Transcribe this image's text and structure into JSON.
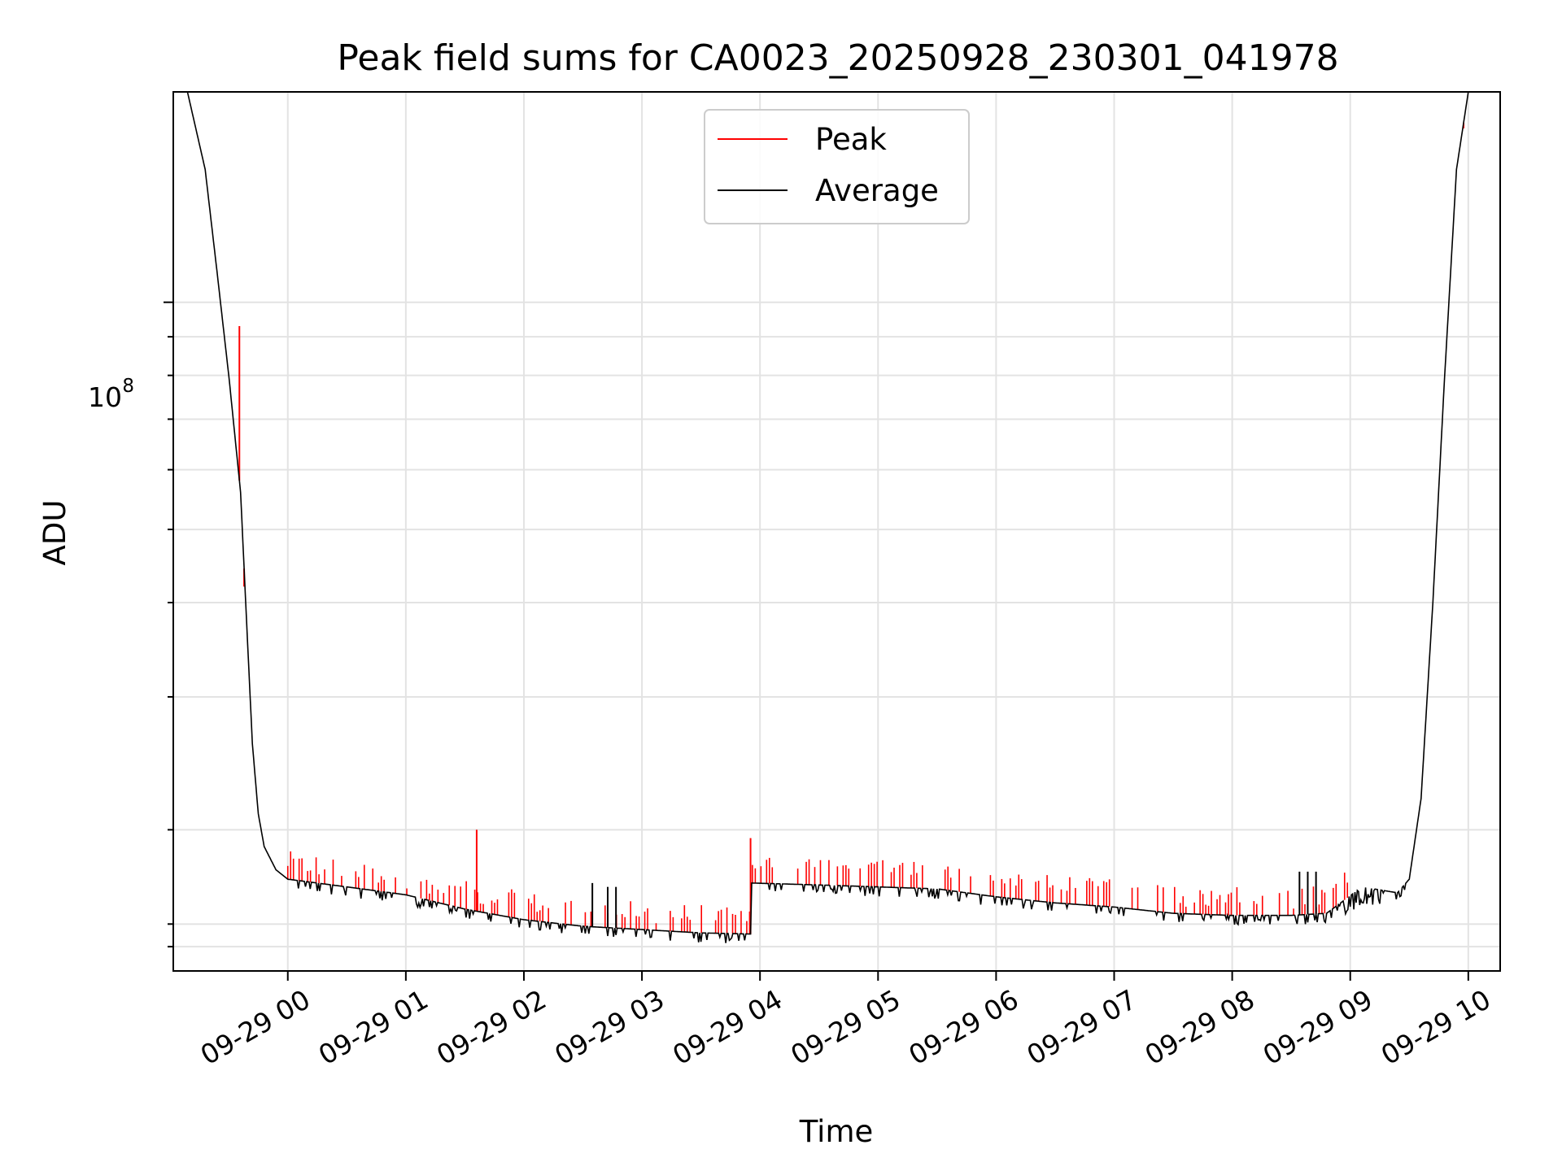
{
  "chart_data": {
    "type": "line",
    "title": "Peak field sums for CA0023_20250928_230301_041978",
    "xlabel": "Time",
    "ylabel": "ADU",
    "y_scale": "log",
    "ylim": [
      13000000,
      190000000
    ],
    "xlim_hours": [
      -0.97,
      10.27
    ],
    "x_tick_hours": [
      0,
      1,
      2,
      3,
      4,
      5,
      6,
      7,
      8,
      9,
      10
    ],
    "x_tick_labels": [
      "09-29 00",
      "09-29 01",
      "09-29 02",
      "09-29 03",
      "09-29 04",
      "09-29 05",
      "09-29 06",
      "09-29 07",
      "09-29 08",
      "09-29 09",
      "09-29 10"
    ],
    "y_tick_label_base": "10",
    "y_tick_label_exp": "8",
    "y_tick_value": 100000000,
    "grid": true,
    "legend_position": "upper-center",
    "series": [
      {
        "name": "Peak",
        "color": "#ff0000"
      },
      {
        "name": "Average",
        "color": "#000000"
      }
    ],
    "baseline_points": [
      [
        -0.97,
        190000000
      ],
      [
        -0.85,
        190000000
      ],
      [
        -0.7,
        150000000
      ],
      [
        -0.6,
        110000000
      ],
      [
        -0.5,
        80000000
      ],
      [
        -0.4,
        56000000
      ],
      [
        -0.35,
        38000000
      ],
      [
        -0.3,
        26000000
      ],
      [
        -0.25,
        21000000
      ],
      [
        -0.2,
        19000000
      ],
      [
        -0.1,
        17700000
      ],
      [
        0.0,
        17200000
      ],
      [
        0.5,
        16800000
      ],
      [
        1.0,
        16400000
      ],
      [
        1.5,
        15700000
      ],
      [
        2.0,
        15200000
      ],
      [
        2.5,
        14900000
      ],
      [
        3.0,
        14750000
      ],
      [
        3.5,
        14600000
      ],
      [
        3.92,
        14550000
      ],
      [
        3.93,
        17000000
      ],
      [
        4.5,
        16900000
      ],
      [
        5.0,
        16800000
      ],
      [
        5.5,
        16700000
      ],
      [
        6.0,
        16300000
      ],
      [
        6.5,
        16000000
      ],
      [
        7.0,
        15800000
      ],
      [
        7.5,
        15500000
      ],
      [
        8.0,
        15400000
      ],
      [
        8.5,
        15400000
      ],
      [
        8.8,
        15500000
      ],
      [
        9.1,
        16800000
      ],
      [
        9.4,
        16500000
      ],
      [
        9.5,
        17200000
      ],
      [
        9.6,
        22000000
      ],
      [
        9.7,
        40000000
      ],
      [
        9.8,
        80000000
      ],
      [
        9.9,
        150000000
      ],
      [
        10.0,
        190000000
      ],
      [
        10.27,
        190000000
      ]
    ],
    "notable_spikes": [
      {
        "x": -0.41,
        "y": 93000000
      },
      {
        "x": -0.37,
        "y": 42000000
      },
      {
        "x": 1.6,
        "y": 20000000
      },
      {
        "x": 3.92,
        "y": 19500000
      },
      {
        "x": 9.96,
        "y": 170000000
      }
    ]
  }
}
